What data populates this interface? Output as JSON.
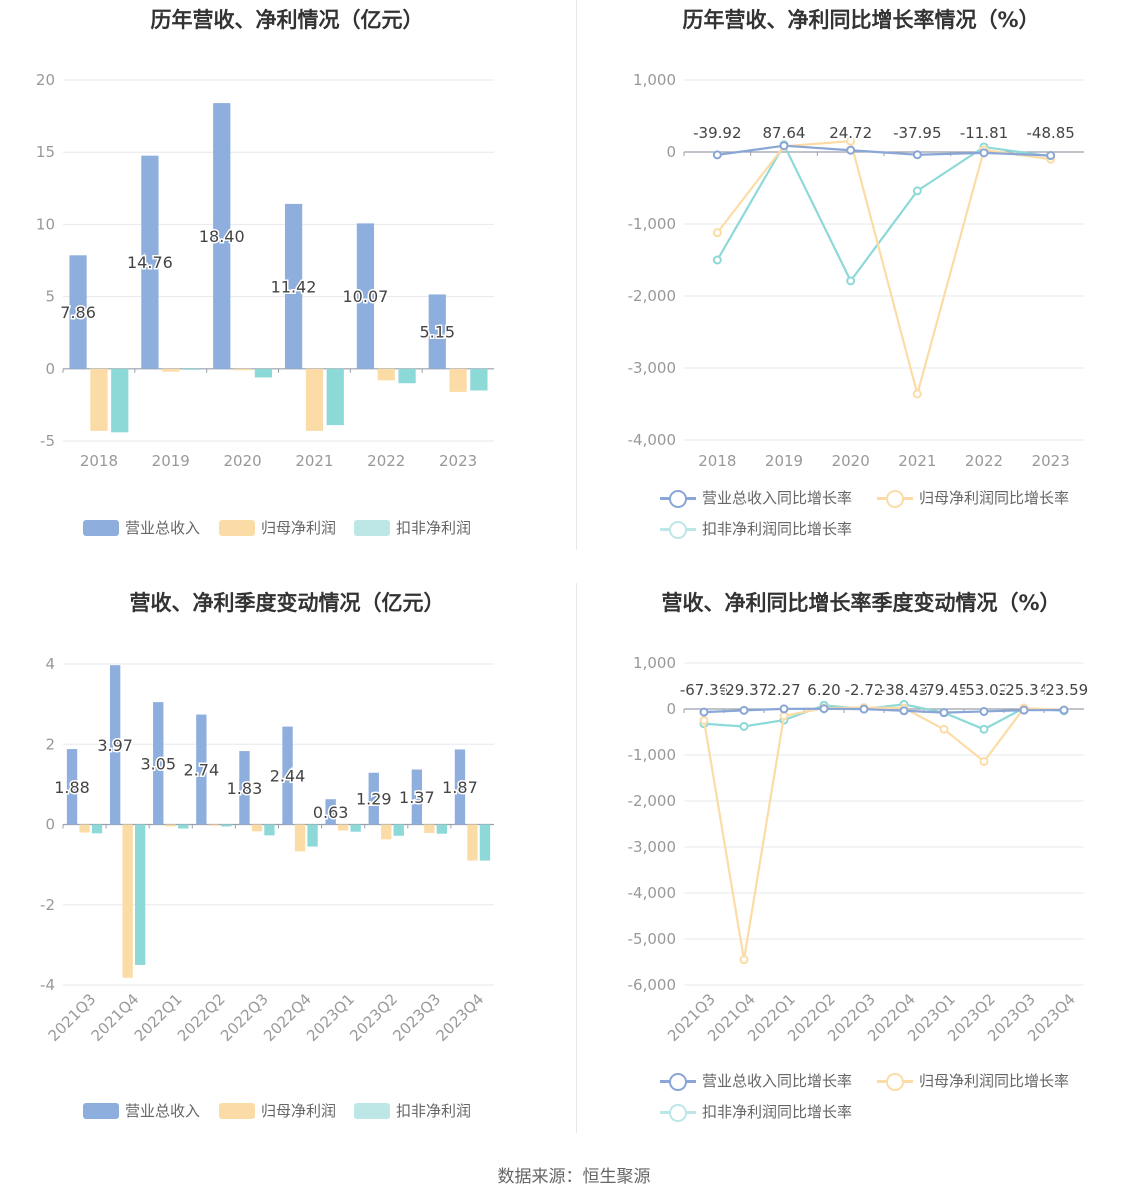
{
  "source_note": "数据来源：恒生聚源",
  "colors": {
    "revenue": "#8eaedd",
    "parent_profit": "#fcdca6",
    "deducted_profit": "#8dd9d8",
    "revenue_line": "#8aa6d6",
    "parent_line": "#fcdca6",
    "deducted_line": "#8dd9d8",
    "grid": "#e6e8ee",
    "axis_text": "#999999",
    "label_text": "#444444"
  },
  "chart_data": [
    {
      "id": "annual-amount",
      "type": "bar",
      "title": "历年营收、净利情况（亿元）",
      "categories": [
        "2018",
        "2019",
        "2020",
        "2021",
        "2022",
        "2023"
      ],
      "ylim": [
        -5,
        20
      ],
      "yticks": [
        -5,
        0,
        5,
        10,
        15,
        20
      ],
      "ytick_labels": [
        "-5",
        "0",
        "5",
        "10",
        "15",
        "20"
      ],
      "series": [
        {
          "name": "营业总收入",
          "color_key": "revenue",
          "values": [
            7.86,
            14.76,
            18.4,
            11.42,
            10.07,
            5.15
          ],
          "labels": [
            "7.86",
            "14.76",
            "18.40",
            "11.42",
            "10.07",
            "5.15"
          ]
        },
        {
          "name": "归母净利润",
          "color_key": "parent_profit",
          "values": [
            -4.3,
            -0.2,
            -0.1,
            -4.3,
            -0.8,
            -1.6
          ]
        },
        {
          "name": "扣非净利润",
          "color_key": "deducted_profit",
          "values": [
            -4.4,
            -0.05,
            -0.6,
            -3.9,
            -1.0,
            -1.5
          ]
        }
      ],
      "legend": [
        "营业总收入",
        "归母净利润",
        "扣非净利润"
      ]
    },
    {
      "id": "annual-growth",
      "type": "line",
      "title": "历年营收、净利同比增长率情况（%）",
      "categories": [
        "2018",
        "2019",
        "2020",
        "2021",
        "2022",
        "2023"
      ],
      "ylim": [
        -4000,
        1000
      ],
      "yticks": [
        -4000,
        -3000,
        -2000,
        -1000,
        0,
        1000
      ],
      "ytick_labels": [
        "-4,000",
        "-3,000",
        "-2,000",
        "-1,000",
        "0",
        "1,000"
      ],
      "series": [
        {
          "name": "营业总收入同比增长率",
          "color_key": "revenue_line",
          "values": [
            -39.92,
            87.64,
            24.72,
            -37.95,
            -11.81,
            -48.85
          ],
          "labels": [
            "-39.92",
            "87.64",
            "24.72",
            "-37.95",
            "-11.81",
            "-48.85"
          ]
        },
        {
          "name": "归母净利润同比增长率",
          "color_key": "parent_line",
          "values": [
            -1120,
            80,
            150,
            -3360,
            30,
            -100
          ]
        },
        {
          "name": "扣非净利润同比增长率",
          "color_key": "deducted_line",
          "values": [
            -1500,
            100,
            -1790,
            -540,
            70,
            -60
          ]
        }
      ],
      "legend": [
        "营业总收入同比增长率",
        "归母净利润同比增长率",
        "扣非净利润同比增长率"
      ]
    },
    {
      "id": "quarterly-amount",
      "type": "bar",
      "title": "营收、净利季度变动情况（亿元）",
      "categories": [
        "2021Q3",
        "2021Q4",
        "2022Q1",
        "2022Q2",
        "2022Q3",
        "2022Q4",
        "2023Q1",
        "2023Q2",
        "2023Q3",
        "2023Q4"
      ],
      "ylim": [
        -4,
        4
      ],
      "yticks": [
        -4,
        -2,
        0,
        2,
        4
      ],
      "ytick_labels": [
        "-4",
        "-2",
        "0",
        "2",
        "4"
      ],
      "series": [
        {
          "name": "营业总收入",
          "color_key": "revenue",
          "values": [
            1.88,
            3.97,
            3.05,
            2.74,
            1.83,
            2.44,
            0.63,
            1.29,
            1.37,
            1.87
          ],
          "labels": [
            "1.88",
            "3.97",
            "3.05",
            "2.74",
            "1.83",
            "2.44",
            "0.63",
            "1.29",
            "1.37",
            "1.87"
          ]
        },
        {
          "name": "归母净利润",
          "color_key": "parent_profit",
          "values": [
            -0.2,
            -3.82,
            -0.05,
            -0.03,
            -0.17,
            -0.67,
            -0.15,
            -0.37,
            -0.21,
            -0.9
          ]
        },
        {
          "name": "扣非净利润",
          "color_key": "deducted_profit",
          "values": [
            -0.22,
            -3.5,
            -0.1,
            -0.05,
            -0.27,
            -0.55,
            -0.18,
            -0.28,
            -0.23,
            -0.9
          ]
        }
      ],
      "legend": [
        "营业总收入",
        "归母净利润",
        "扣非净利润"
      ]
    },
    {
      "id": "quarterly-growth",
      "type": "line",
      "title": "营收、净利同比增长率季度变动情况（%）",
      "categories": [
        "2021Q3",
        "2021Q4",
        "2022Q1",
        "2022Q2",
        "2022Q3",
        "2022Q4",
        "2023Q1",
        "2023Q2",
        "2023Q3",
        "2023Q4"
      ],
      "ylim": [
        -6000,
        1000
      ],
      "yticks": [
        -6000,
        -5000,
        -4000,
        -3000,
        -2000,
        -1000,
        0,
        1000
      ],
      "ytick_labels": [
        "-6,000",
        "-5,000",
        "-4,000",
        "-3,000",
        "-2,000",
        "-1,000",
        "0",
        "1,000"
      ],
      "series": [
        {
          "name": "营业总收入同比增长率",
          "color_key": "revenue_line",
          "values": [
            -67.36,
            -29.37,
            2.27,
            6.2,
            -2.72,
            -38.43,
            -79.45,
            -53.02,
            -25.34,
            -23.59
          ],
          "labels": [
            "-67.36",
            "-29.37",
            "2.27",
            "6.20",
            "-2.72",
            "-38.43",
            "-79.45",
            "-53.02",
            "-25.34",
            "-23.59"
          ]
        },
        {
          "name": "归母净利润同比增长率",
          "color_key": "parent_line",
          "values": [
            -250,
            -5450,
            -150,
            20,
            30,
            20,
            -440,
            -1140,
            20,
            -20
          ]
        },
        {
          "name": "扣非净利润同比增长率",
          "color_key": "deducted_line",
          "values": [
            -320,
            -380,
            -240,
            80,
            0,
            100,
            -80,
            -440,
            20,
            -40
          ]
        }
      ],
      "legend": [
        "营业总收入同比增长率",
        "归母净利润同比增长率",
        "扣非净利润同比增长率"
      ]
    }
  ]
}
